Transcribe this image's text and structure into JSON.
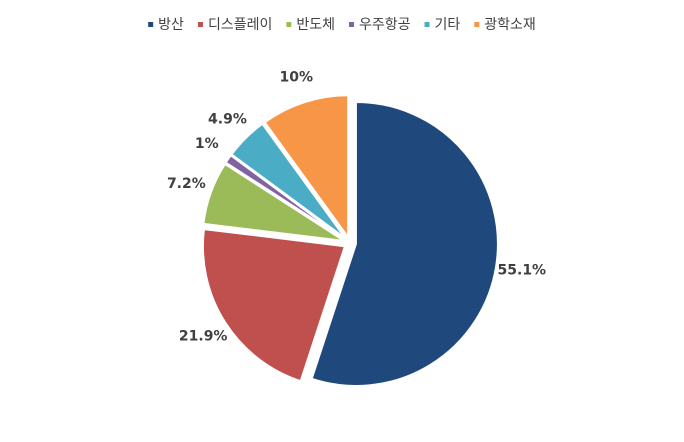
{
  "chart_data": {
    "type": "pie",
    "categories": [
      "방산",
      "디스플레이",
      "반도체",
      "우주항공",
      "기타",
      "광학소재"
    ],
    "values": [
      55.1,
      21.9,
      7.2,
      1,
      4.9,
      10
    ],
    "value_labels": [
      "55.1%",
      "21.9%",
      "7.2%",
      "1%",
      "4.9%",
      "10%"
    ],
    "colors": [
      "#1f497d",
      "#c0504d",
      "#9bbb59",
      "#8064a2",
      "#4bacc6",
      "#f79646"
    ],
    "legend": "top"
  }
}
